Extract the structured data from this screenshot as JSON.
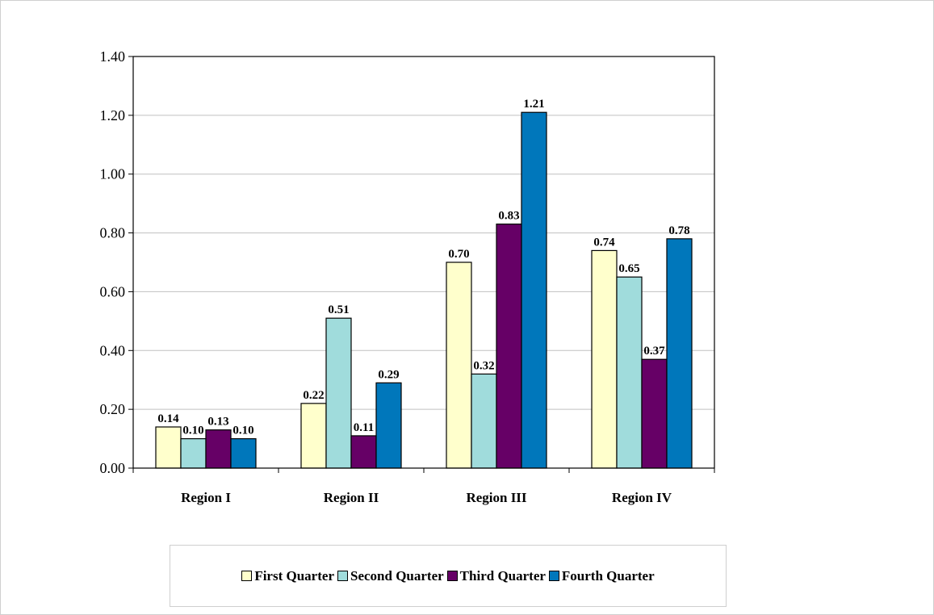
{
  "chart_data": {
    "type": "bar",
    "title": "",
    "xlabel": "",
    "ylabel": "",
    "categories": [
      "Region I",
      "Region II",
      "Region III",
      "Region IV"
    ],
    "series": [
      {
        "name": "First Quarter",
        "values": [
          0.14,
          0.22,
          0.7,
          0.74
        ],
        "color": "#ffffcc"
      },
      {
        "name": "Second Quarter",
        "values": [
          0.1,
          0.51,
          0.32,
          0.65
        ],
        "color": "#a0dcdc"
      },
      {
        "name": "Third Quarter",
        "values": [
          0.13,
          0.11,
          0.83,
          0.37
        ],
        "color": "#660066"
      },
      {
        "name": "Fourth Quarter",
        "values": [
          0.1,
          0.29,
          1.21,
          0.78
        ],
        "color": "#0077bb"
      }
    ],
    "ylim": [
      0,
      1.4
    ],
    "yticks": [
      "0.00",
      "0.20",
      "0.40",
      "0.60",
      "0.80",
      "1.00",
      "1.20",
      "1.40"
    ],
    "grid": true,
    "legend_position": "bottom"
  }
}
